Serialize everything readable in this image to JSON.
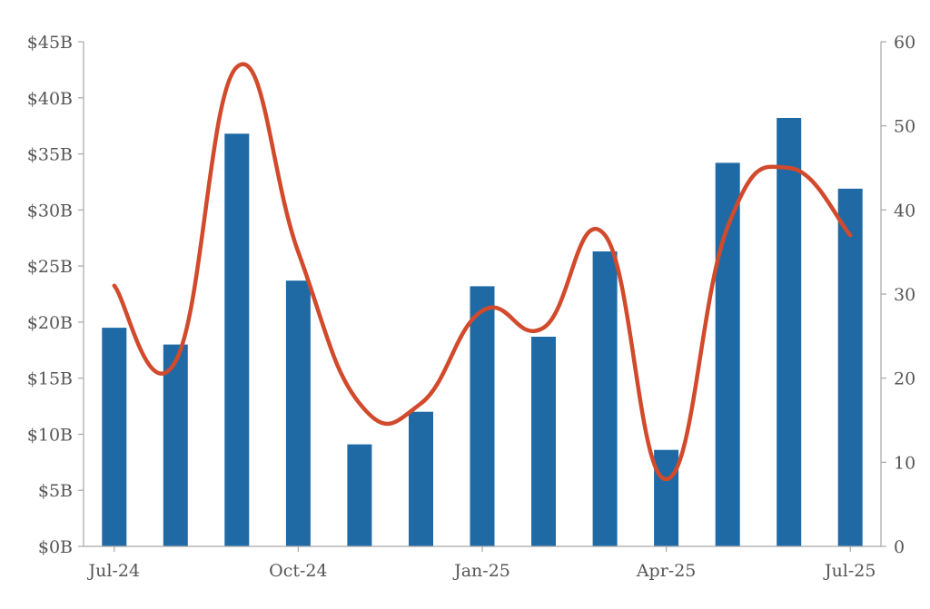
{
  "chart_data": {
    "type": "bar",
    "title": "",
    "xlabel": "",
    "ylabel": "",
    "y2label": "",
    "categories": [
      "Jul-24",
      "Aug-24",
      "Sep-24",
      "Oct-24",
      "Nov-24",
      "Dec-24",
      "Jan-25",
      "Feb-25",
      "Mar-25",
      "Apr-25",
      "May-25",
      "Jun-25",
      "Jul-25"
    ],
    "x_tick_labels": [
      "Jul-24",
      "Oct-24",
      "Jan-25",
      "Apr-25",
      "Jul-25"
    ],
    "y_tick_labels": [
      "$0B",
      "$5B",
      "$10B",
      "$15B",
      "$20B",
      "$25B",
      "$30B",
      "$35B",
      "$40B",
      "$45B"
    ],
    "y2_tick_labels": [
      "0",
      "10",
      "20",
      "30",
      "40",
      "50",
      "60"
    ],
    "ylim": [
      0,
      45
    ],
    "y2lim": [
      0,
      60
    ],
    "grid": false,
    "series": [
      {
        "type": "bar",
        "axis": "left",
        "color": "#1f6aa5",
        "values": [
          19.5,
          18.0,
          36.8,
          23.7,
          9.1,
          12.0,
          23.2,
          18.7,
          26.3,
          8.6,
          34.2,
          38.2,
          31.9
        ]
      },
      {
        "type": "line",
        "axis": "right",
        "color": "#d24a2c",
        "smooth": true,
        "values": [
          31,
          22,
          57,
          35,
          17,
          17,
          28,
          26,
          37,
          8,
          38,
          45,
          37
        ]
      }
    ]
  }
}
